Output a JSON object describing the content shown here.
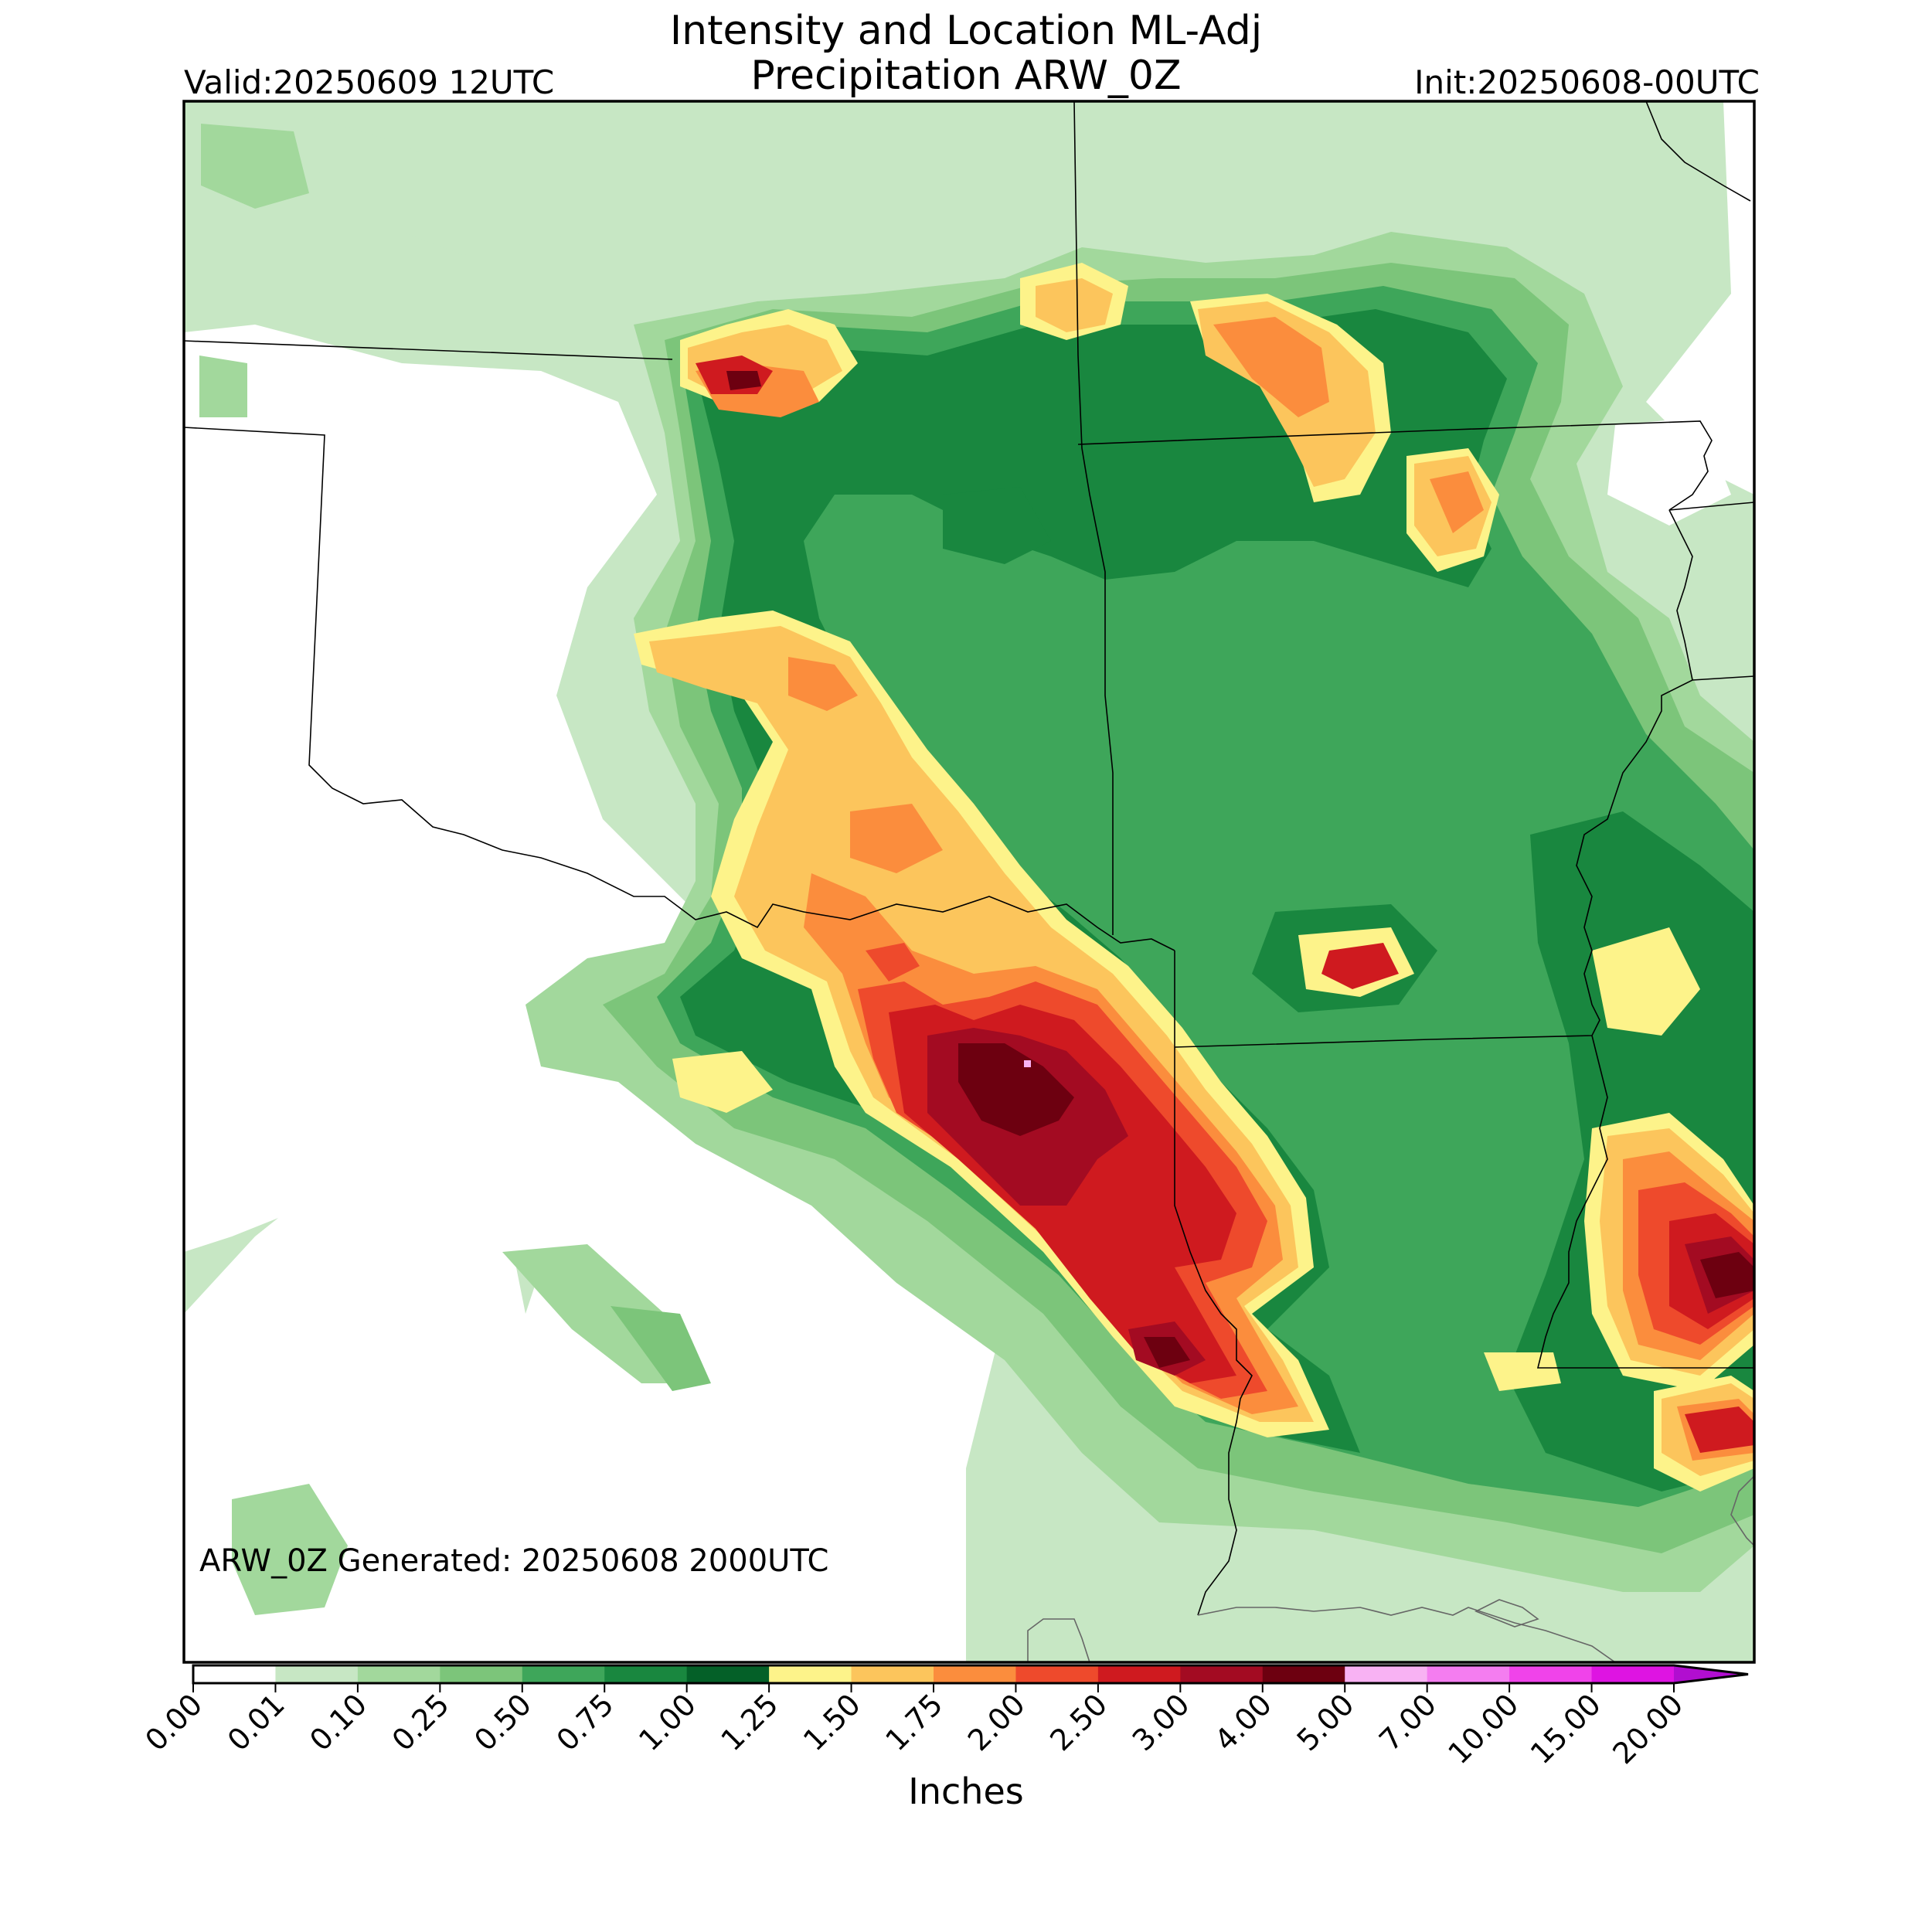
{
  "header": {
    "title_line1": "Intensity and Location ML-Adj",
    "title_line2": "Precipitation ARW_0Z",
    "valid": "Valid:20250609 12UTC",
    "init": "Init:20250608-00UTC"
  },
  "annotation": "ARW_0Z Generated: 20250608 2000UTC",
  "colorbar": {
    "label": "Inches",
    "ticks": [
      "0.00",
      "0.01",
      "0.10",
      "0.25",
      "0.50",
      "0.75",
      "1.00",
      "1.25",
      "1.50",
      "1.75",
      "2.00",
      "2.50",
      "3.00",
      "4.00",
      "5.00",
      "7.00",
      "10.00",
      "15.00",
      "20.00"
    ],
    "colors": [
      "#ffffff",
      "#c7e7c4",
      "#a2d89c",
      "#7cc57a",
      "#3ea65a",
      "#19873f",
      "#046028",
      "#fdf38a",
      "#fcc55c",
      "#fb8d3d",
      "#ee4a2c",
      "#cf1a1f",
      "#a30b22",
      "#6d0010",
      "#f8b2f3",
      "#f47df0",
      "#f043ea",
      "#de14e2",
      "#b10ed0",
      "#8c00cd"
    ],
    "extend": "max"
  },
  "map_colors": {
    "state_border": "#000000",
    "coastline": "#666666",
    "frame": "#000000"
  }
}
